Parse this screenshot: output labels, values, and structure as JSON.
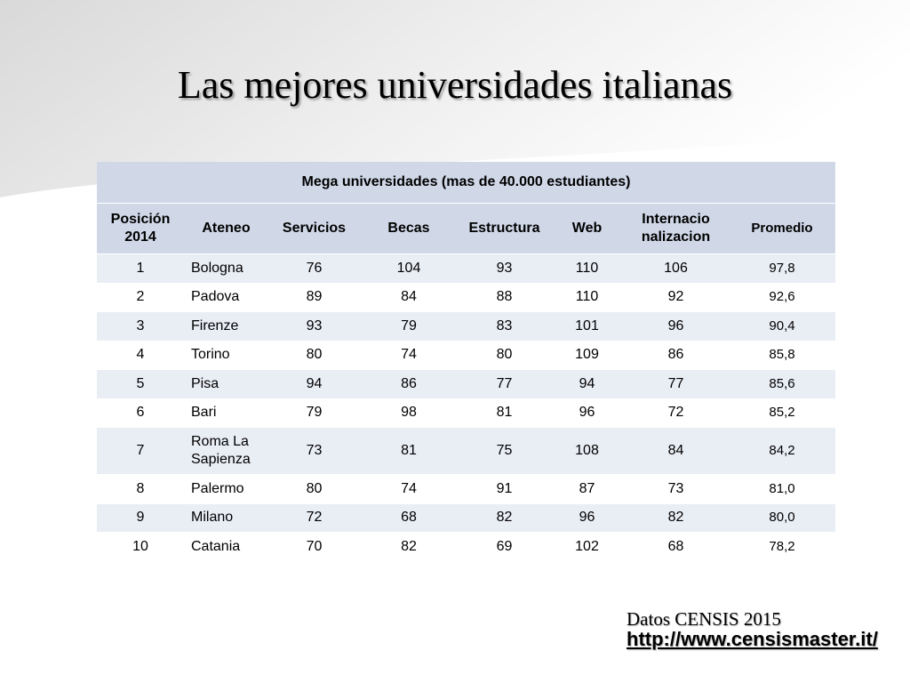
{
  "slide": {
    "title": "Las mejores universidades italianas"
  },
  "table": {
    "caption": "Mega universidades (mas de 40.000 estudiantes)",
    "headers": [
      "Posición 2014",
      "Ateneo",
      "Servicios",
      "Becas",
      "Estructura",
      "Web",
      "Internacio nalizacion",
      "Promedio"
    ],
    "rows": [
      [
        "1",
        "Bologna",
        "76",
        "104",
        "93",
        "110",
        "106",
        "97,8"
      ],
      [
        "2",
        "Padova",
        "89",
        "84",
        "88",
        "110",
        "92",
        "92,6"
      ],
      [
        "3",
        "Firenze",
        "93",
        "79",
        "83",
        "101",
        "96",
        "90,4"
      ],
      [
        "4",
        "Torino",
        "80",
        "74",
        "80",
        "109",
        "86",
        "85,8"
      ],
      [
        "5",
        "Pisa",
        "94",
        "86",
        "77",
        "94",
        "77",
        "85,6"
      ],
      [
        "6",
        "Bari",
        "79",
        "98",
        "81",
        "96",
        "72",
        "85,2"
      ],
      [
        "7",
        "Roma La Sapienza",
        "73",
        "81",
        "75",
        "108",
        "84",
        "84,2"
      ],
      [
        "8",
        "Palermo",
        "80",
        "74",
        "91",
        "87",
        "73",
        "81,0"
      ],
      [
        "9",
        "Milano",
        "72",
        "68",
        "82",
        "96",
        "82",
        "80,0"
      ],
      [
        "10",
        "Catania",
        "70",
        "82",
        "69",
        "102",
        "68",
        "78,2"
      ]
    ]
  },
  "source": {
    "text": "Datos CENSIS 2015",
    "link": "http://www.censismaster.it/"
  },
  "colors": {
    "header_bg": "#d0d8e8",
    "row_alt_bg": "#e9edf4",
    "row_bg": "#ffffff"
  }
}
